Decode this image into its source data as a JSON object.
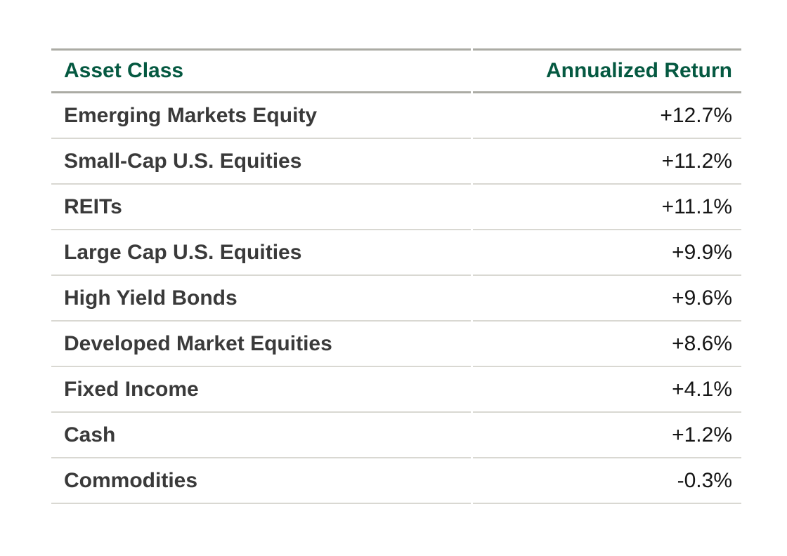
{
  "table": {
    "headers": {
      "asset_class": "Asset Class",
      "annualized_return": "Annualized Return"
    },
    "rows": [
      {
        "asset": "Emerging Markets Equity",
        "return": "+12.7%"
      },
      {
        "asset": "Small-Cap U.S. Equities",
        "return": "+11.2%"
      },
      {
        "asset": "REITs",
        "return": "+11.1%"
      },
      {
        "asset": "Large Cap U.S. Equities",
        "return": "+9.9%"
      },
      {
        "asset": "High Yield Bonds",
        "return": "+9.6%"
      },
      {
        "asset": "Developed Market Equities",
        "return": "+8.6%"
      },
      {
        "asset": "Fixed Income",
        "return": "+4.1%"
      },
      {
        "asset": "Cash",
        "return": "+1.2%"
      },
      {
        "asset": "Commodities",
        "return": "-0.3%"
      }
    ],
    "colors": {
      "header_text_green": "#055941",
      "asset_name_gray": "#3a3a3a",
      "value_black": "#161616",
      "header_rule_gray": "#ababa4",
      "row_rule_light_gray": "#d9d8d2",
      "background": "#ffffff"
    }
  },
  "chart_data": {
    "type": "table",
    "title": "",
    "columns": [
      "Asset Class",
      "Annualized Return"
    ],
    "rows": [
      [
        "Emerging Markets Equity",
        "+12.7%"
      ],
      [
        "Small-Cap U.S. Equities",
        "+11.2%"
      ],
      [
        "REITs",
        "+11.1%"
      ],
      [
        "Large Cap U.S. Equities",
        "+9.9%"
      ],
      [
        "High Yield Bonds",
        "+9.6%"
      ],
      [
        "Developed Market Equities",
        "+8.6%"
      ],
      [
        "Fixed Income",
        "+4.1%"
      ],
      [
        "Cash",
        "+1.2%"
      ],
      [
        "Commodities",
        "-0.3%"
      ]
    ],
    "annualized_return_values_pct": [
      12.7,
      11.2,
      11.1,
      9.9,
      9.6,
      8.6,
      4.1,
      1.2,
      -0.3
    ],
    "layout": {
      "grid": "horizontal-rules-only",
      "header_rule": "thick-gray",
      "row_rule": "thin-light-gray"
    }
  }
}
